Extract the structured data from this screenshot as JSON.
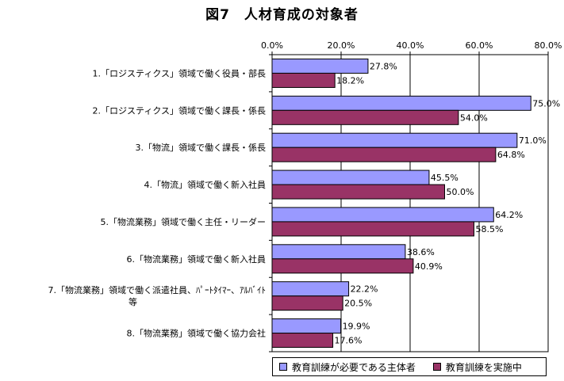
{
  "chart_data": {
    "type": "bar",
    "orientation": "horizontal",
    "title": "図7　人材育成の対象者",
    "categories": [
      "1.「ロジスティクス」領域で働く役員・部長",
      "2.「ロジスティクス」領域で働く課長・係長",
      "3.「物流」領域で働く課長・係長",
      "4.「物流」領域で働く新入社員",
      "5.「物流業務」領域で働く主任・リーダー",
      "6.「物流業務」領域で働く新入社員",
      "7.「物流業務」領域で働く派遣社員、ﾊﾟｰﾄﾀｲﾏｰ、ｱﾙﾊﾞｲﾄ等",
      "8.「物流業務」領域で働く協力会社"
    ],
    "category_lines": [
      [
        "1.「ロジスティクス」領域で働く役員・部長"
      ],
      [
        "2.「ロジスティクス」領域で働く課長・係長"
      ],
      [
        "3.「物流」領域で働く課長・係長"
      ],
      [
        "4.「物流」領域で働く新入社員"
      ],
      [
        "5.「物流業務」領域で働く主任・リーダー"
      ],
      [
        "6.「物流業務」領域で働く新入社員"
      ],
      [
        "7.「物流業務」領域で働く派遣社員、ﾊﾟｰﾄﾀｲﾏｰ、ｱﾙﾊﾞｲﾄ",
        "等"
      ],
      [
        "8.「物流業務」領域で働く協力会社"
      ]
    ],
    "series": [
      {
        "name": "教育訓練が必要である主体者",
        "color": "#9999ff",
        "values": [
          27.8,
          75.0,
          71.0,
          45.5,
          64.2,
          38.6,
          22.2,
          19.9
        ]
      },
      {
        "name": "教育訓練を実施中",
        "color": "#993366",
        "values": [
          18.2,
          54.0,
          64.8,
          50.0,
          58.5,
          40.9,
          20.5,
          17.6
        ]
      }
    ],
    "xlim": [
      0,
      80
    ],
    "ticks": [
      0,
      20,
      40,
      60,
      80
    ],
    "tick_labels": [
      "0.0%",
      "20.0%",
      "40.0%",
      "60.0%",
      "80.0%"
    ],
    "value_suffix": "%",
    "grid": true,
    "legend_position": "bottom"
  }
}
